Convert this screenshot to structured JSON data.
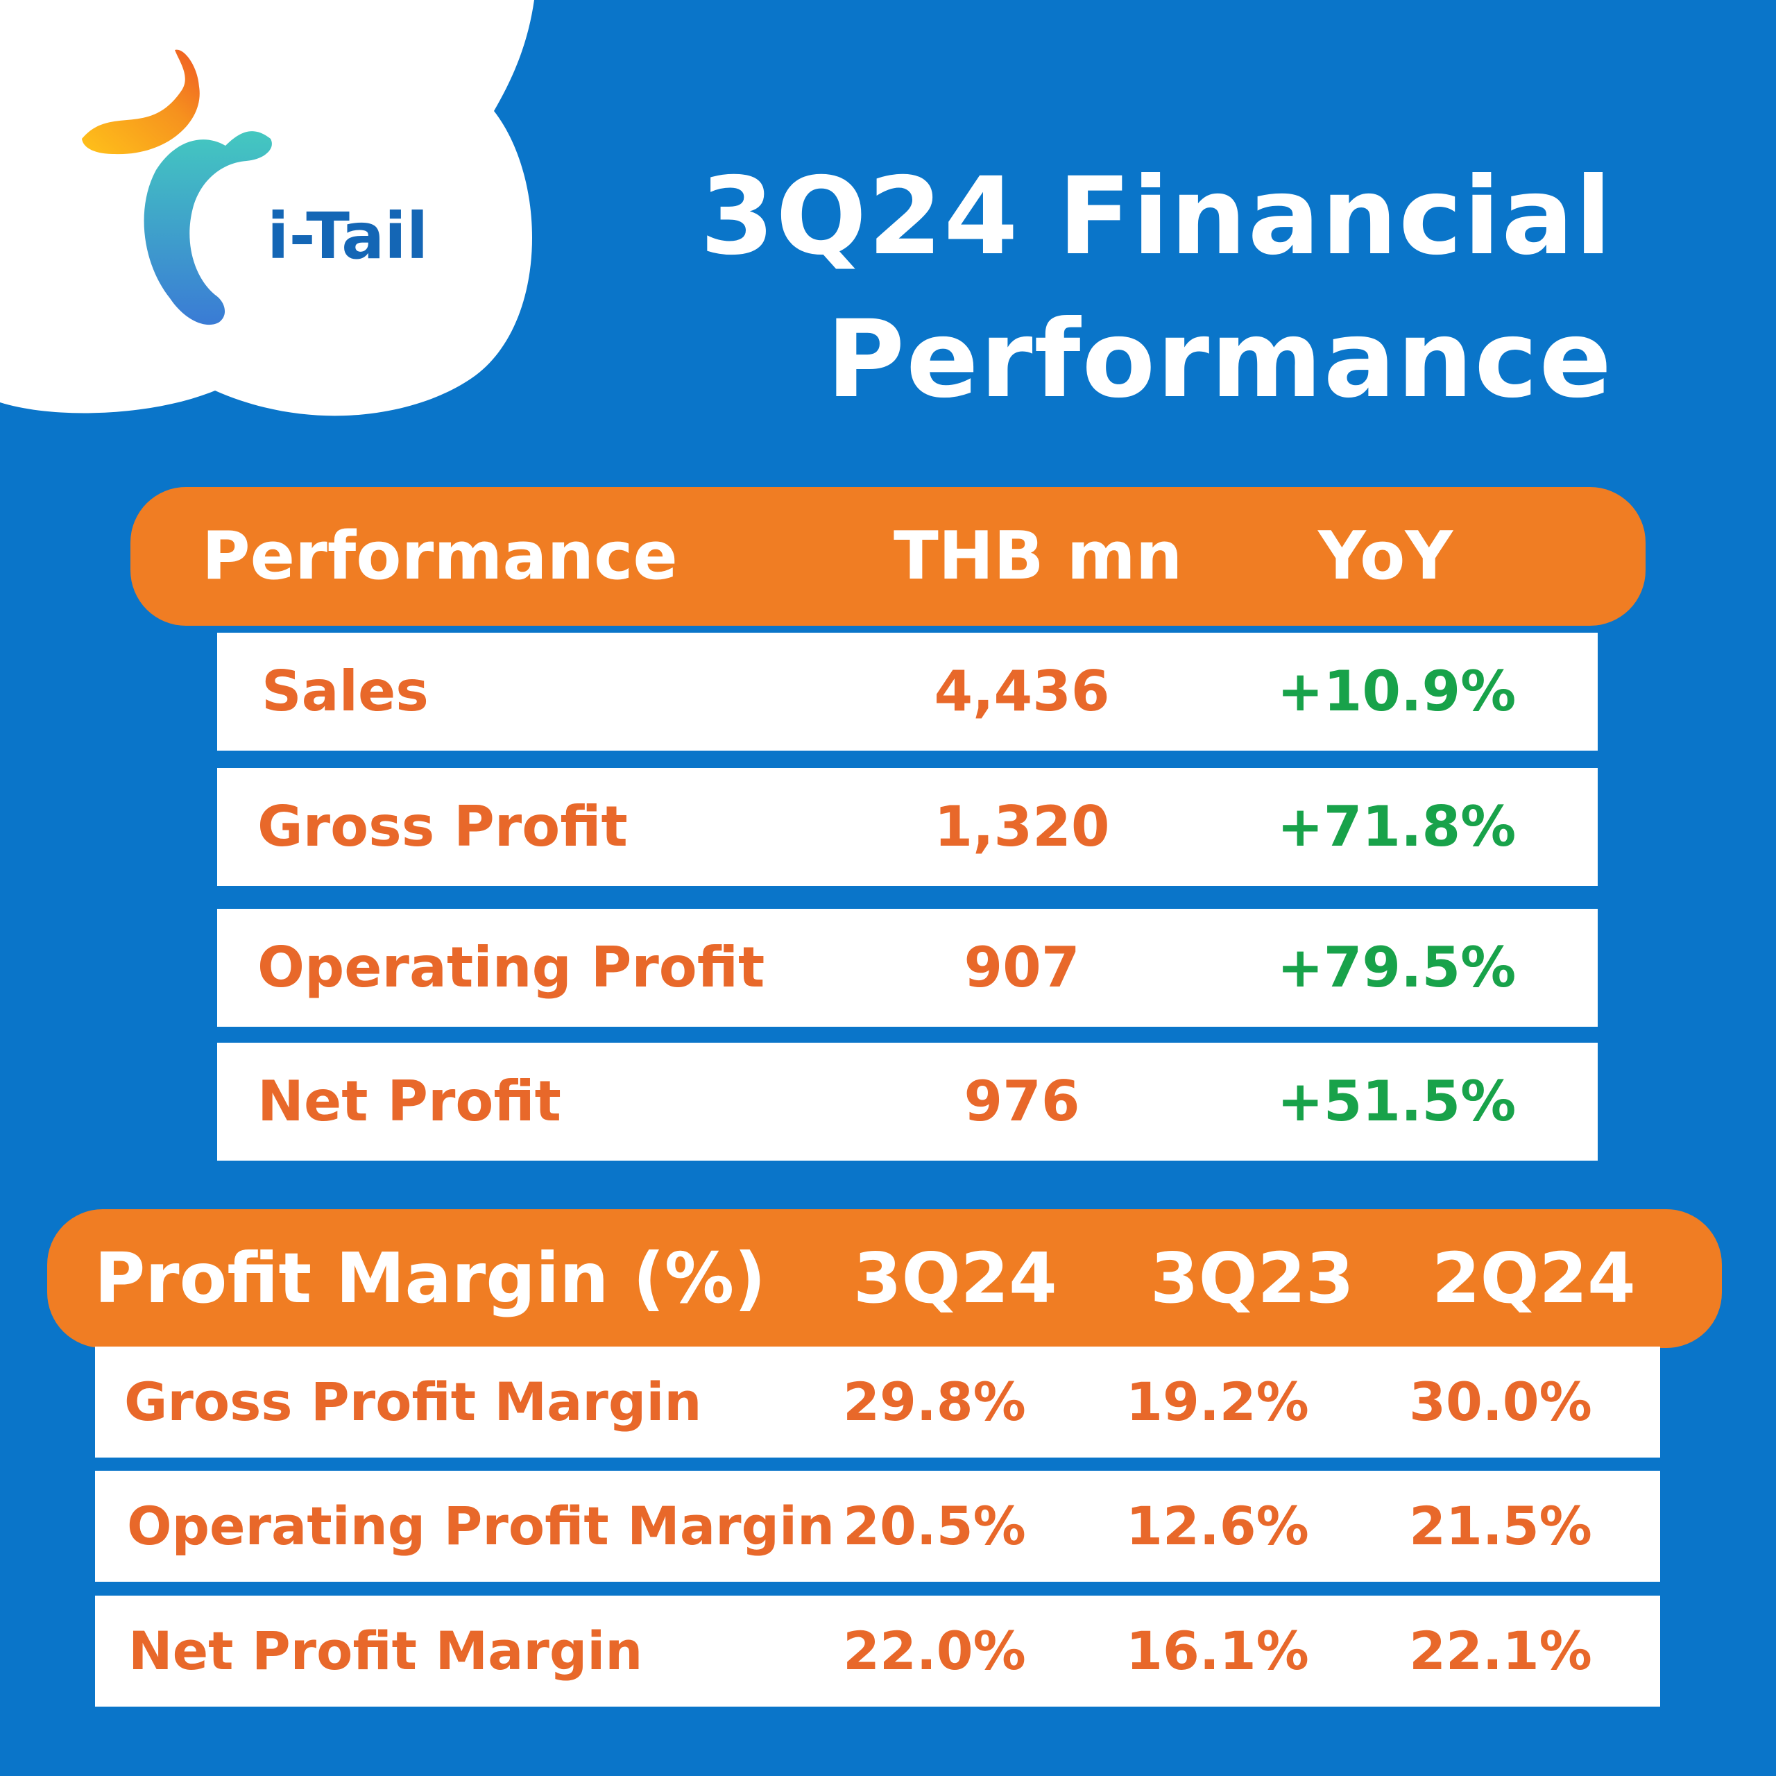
{
  "brand": {
    "logo_text": "i-Tail",
    "colors": {
      "background": "#0a75c9",
      "accent_orange": "#f07d23",
      "text_orange": "#e8682a",
      "positive_green": "#18a24a",
      "logo_teal": "#3cc0c0"
    }
  },
  "title": {
    "line1": "3Q24 Financial",
    "line2": "Performance"
  },
  "performance_table": {
    "headers": {
      "label": "Performance",
      "value": "THB mn",
      "yoy": "YoY"
    },
    "rows": [
      {
        "label": "Sales",
        "value": "4,436",
        "yoy": "+10.9%"
      },
      {
        "label": "Gross Profit",
        "value": "1,320",
        "yoy": "+71.8%"
      },
      {
        "label": "Operating Profit",
        "value": "907",
        "yoy": "+79.5%"
      },
      {
        "label": "Net Profit",
        "value": "976",
        "yoy": "+51.5%"
      }
    ]
  },
  "margin_table": {
    "headers": {
      "label": "Profit Margin (%)",
      "col1": "3Q24",
      "col2": "3Q23",
      "col3": "2Q24"
    },
    "rows": [
      {
        "label": "Gross Profit Margin",
        "col1": "29.8%",
        "col2": "19.2%",
        "col3": "30.0%"
      },
      {
        "label": "Operating Profit Margin",
        "col1": "20.5%",
        "col2": "12.6%",
        "col3": "21.5%"
      },
      {
        "label": "Net Profit Margin",
        "col1": "22.0%",
        "col2": "16.1%",
        "col3": "22.1%"
      }
    ]
  }
}
